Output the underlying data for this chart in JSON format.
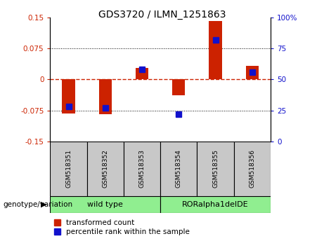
{
  "title": "GDS3720 / ILMN_1251863",
  "samples": [
    "GSM518351",
    "GSM518352",
    "GSM518353",
    "GSM518354",
    "GSM518355",
    "GSM518356"
  ],
  "groups_def": [
    {
      "name": "wild type",
      "start": 0,
      "end": 2
    },
    {
      "name": "RORalpha1delDE",
      "start": 3,
      "end": 5
    }
  ],
  "transformed_count": [
    -0.083,
    -0.085,
    0.028,
    -0.038,
    0.142,
    0.032
  ],
  "percentile_rank_raw": [
    28,
    27,
    58,
    22,
    82,
    56
  ],
  "ylim_left": [
    -0.15,
    0.15
  ],
  "ylim_right": [
    0,
    100
  ],
  "yticks_left": [
    -0.15,
    -0.075,
    0,
    0.075,
    0.15
  ],
  "yticks_right": [
    0,
    25,
    50,
    75,
    100
  ],
  "ytick_labels_left": [
    "-0.15",
    "-0.075",
    "0",
    "0.075",
    "0.15"
  ],
  "ytick_labels_right": [
    "0",
    "25",
    "50",
    "75",
    "100%"
  ],
  "bar_color_red": "#CC2200",
  "bar_color_blue": "#1111CC",
  "zero_line_color": "#CC2200",
  "grid_color": "#000000",
  "bg_sample_labels": "#C8C8C8",
  "bg_group_labels": "#90EE90",
  "legend_red_label": "transformed count",
  "legend_blue_label": "percentile rank within the sample",
  "genotype_label": "genotype/variation",
  "bar_width": 0.35,
  "blue_marker_size": 6,
  "title_fontsize": 10
}
